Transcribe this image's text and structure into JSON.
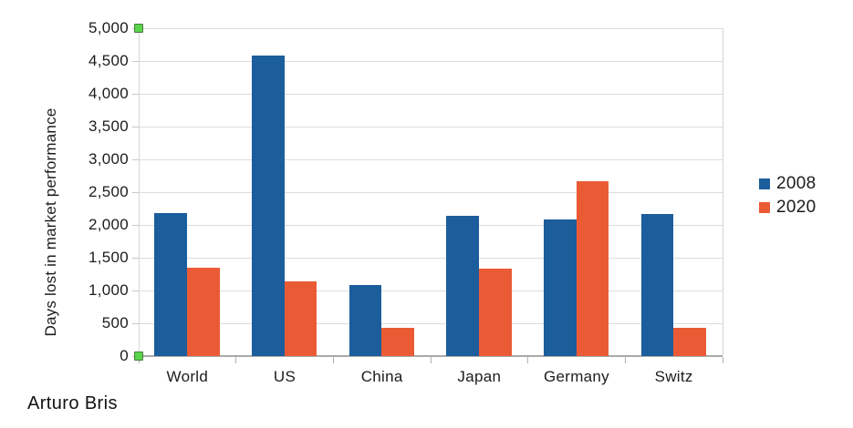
{
  "credit": "Arturo Bris",
  "colors": {
    "series_2008": "#1c5d9c",
    "series_2020": "#ea5b35",
    "gridline": "#dcdcdc",
    "axis": "#a9a9a9",
    "text": "#1c1c1e",
    "selection_handle_fill": "#57d44b",
    "selection_handle_border": "#4a7a40",
    "background": "#ffffff"
  },
  "selection": {
    "state": "chart-object-selected",
    "handle_icons": [
      "top-left-selection-handle-icon",
      "bottom-left-selection-handle-icon"
    ]
  },
  "chart_data": {
    "type": "bar",
    "title": "",
    "xlabel": "",
    "ylabel": "Days lost in market performance",
    "categories": [
      "World",
      "US",
      "China",
      "Japan",
      "Germany",
      "Switz"
    ],
    "series": [
      {
        "name": "2008",
        "color": "#1c5d9c",
        "values": [
          2180,
          4580,
          1090,
          2140,
          2090,
          2160
        ]
      },
      {
        "name": "2020",
        "color": "#ea5b35",
        "values": [
          1350,
          1140,
          430,
          1330,
          2670,
          430
        ]
      }
    ],
    "ylim": [
      0,
      5000
    ],
    "ytick_step": 500,
    "ytick_labels": [
      "0",
      "500",
      "1,000",
      "1,500",
      "2,000",
      "2,500",
      "3,000",
      "3,500",
      "4,000",
      "4,500",
      "5,000"
    ],
    "grid": true,
    "legend_position": "right"
  }
}
